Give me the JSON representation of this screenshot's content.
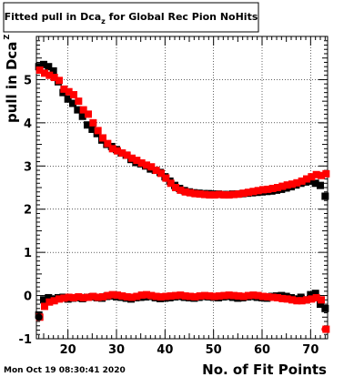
{
  "chart_data": {
    "type": "scatter",
    "title": "Fitted pull in Dca",
    "title_subscript": "z",
    "title_suffix": " for Global Rec Pion NoHits",
    "xlabel": "No. of Fit Points",
    "ylabel": "pull in Dca",
    "ylabel_subscript": "Z",
    "timestamp": "Mon Oct 19 08:30:41 2020",
    "xlim": [
      13.5,
      73.5
    ],
    "ylim": [
      -1.0,
      6.0
    ],
    "x_ticks": [
      20,
      30,
      40,
      50,
      60,
      70
    ],
    "y_ticks": [
      -1,
      0,
      1,
      2,
      3,
      4,
      5
    ],
    "grid": true,
    "legend": "none",
    "series": [
      {
        "color": "#000000",
        "groups": [
          {
            "x": [
              14,
              15,
              16,
              17,
              18,
              19,
              20,
              21,
              22,
              23,
              24,
              25,
              26,
              27,
              28,
              29,
              30,
              31,
              32,
              33,
              34,
              35,
              36,
              37,
              38,
              39,
              40,
              41,
              42,
              43,
              44,
              45,
              46,
              47,
              48,
              49,
              50,
              51,
              52,
              53,
              54,
              55,
              56,
              57,
              58,
              59,
              60,
              61,
              62,
              63,
              64,
              65,
              66,
              67,
              68,
              69,
              70,
              71,
              72,
              73
            ],
            "y": [
              5.3,
              5.35,
              5.3,
              5.2,
              4.95,
              4.7,
              4.55,
              4.45,
              4.3,
              4.15,
              3.95,
              3.85,
              3.75,
              3.6,
              3.5,
              3.45,
              3.38,
              3.3,
              3.25,
              3.15,
              3.08,
              3.05,
              3.0,
              2.93,
              2.9,
              2.85,
              2.75,
              2.65,
              2.55,
              2.48,
              2.43,
              2.4,
              2.38,
              2.37,
              2.36,
              2.36,
              2.35,
              2.35,
              2.34,
              2.34,
              2.35,
              2.35,
              2.36,
              2.37,
              2.38,
              2.39,
              2.4,
              2.41,
              2.42,
              2.44,
              2.46,
              2.49,
              2.52,
              2.56,
              2.6,
              2.63,
              2.65,
              2.6,
              2.55,
              2.3
            ]
          },
          {
            "x": [
              14,
              15,
              16,
              17,
              18,
              19,
              20,
              21,
              22,
              23,
              24,
              25,
              26,
              27,
              28,
              29,
              30,
              31,
              32,
              33,
              34,
              35,
              36,
              37,
              38,
              39,
              40,
              41,
              42,
              43,
              44,
              45,
              46,
              47,
              48,
              49,
              50,
              51,
              52,
              53,
              54,
              55,
              56,
              57,
              58,
              59,
              60,
              61,
              62,
              63,
              64,
              65,
              66,
              67,
              68,
              69,
              70,
              71,
              72,
              73
            ],
            "y": [
              -0.45,
              -0.1,
              -0.05,
              -0.08,
              -0.05,
              -0.04,
              -0.08,
              -0.06,
              -0.05,
              -0.07,
              -0.04,
              -0.03,
              -0.05,
              -0.06,
              -0.02,
              -0.01,
              -0.03,
              -0.04,
              -0.06,
              -0.08,
              -0.05,
              -0.04,
              -0.03,
              -0.02,
              -0.05,
              -0.07,
              -0.06,
              -0.05,
              -0.03,
              -0.02,
              -0.04,
              -0.05,
              -0.06,
              -0.04,
              -0.02,
              -0.03,
              -0.04,
              -0.05,
              -0.03,
              -0.02,
              -0.04,
              -0.06,
              -0.05,
              -0.03,
              -0.02,
              -0.04,
              -0.05,
              -0.06,
              -0.02,
              -0.01,
              0.0,
              -0.02,
              -0.05,
              -0.08,
              -0.04,
              -0.1,
              0.02,
              0.05,
              -0.2,
              -0.3
            ]
          }
        ]
      },
      {
        "color": "#ff0000",
        "groups": [
          {
            "x": [
              14,
              15,
              16,
              17,
              18,
              19,
              20,
              21,
              22,
              23,
              24,
              25,
              26,
              27,
              28,
              29,
              30,
              31,
              32,
              33,
              34,
              35,
              36,
              37,
              38,
              39,
              40,
              41,
              42,
              43,
              44,
              45,
              46,
              47,
              48,
              49,
              50,
              51,
              52,
              53,
              54,
              55,
              56,
              57,
              58,
              59,
              60,
              61,
              62,
              63,
              64,
              65,
              66,
              67,
              68,
              69,
              70,
              71,
              72,
              73
            ],
            "y": [
              5.22,
              5.15,
              5.1,
              5.05,
              4.98,
              4.78,
              4.72,
              4.65,
              4.5,
              4.3,
              4.2,
              4.0,
              3.82,
              3.65,
              3.52,
              3.4,
              3.35,
              3.3,
              3.25,
              3.18,
              3.13,
              3.07,
              3.02,
              2.98,
              2.9,
              2.83,
              2.72,
              2.6,
              2.5,
              2.44,
              2.4,
              2.38,
              2.36,
              2.35,
              2.34,
              2.33,
              2.33,
              2.34,
              2.33,
              2.33,
              2.34,
              2.35,
              2.37,
              2.39,
              2.41,
              2.43,
              2.45,
              2.46,
              2.48,
              2.5,
              2.53,
              2.56,
              2.58,
              2.61,
              2.65,
              2.7,
              2.75,
              2.8,
              2.78,
              2.82
            ]
          },
          {
            "x": [
              14,
              15,
              16,
              17,
              18,
              19,
              20,
              21,
              22,
              23,
              24,
              25,
              26,
              27,
              28,
              29,
              30,
              31,
              32,
              33,
              34,
              35,
              36,
              37,
              38,
              39,
              40,
              41,
              42,
              43,
              44,
              45,
              46,
              47,
              48,
              49,
              50,
              51,
              52,
              53,
              54,
              55,
              56,
              57,
              58,
              59,
              60,
              61,
              62,
              63,
              64,
              65,
              66,
              67,
              68,
              69,
              70,
              71,
              72,
              73
            ],
            "y": [
              -0.5,
              -0.25,
              -0.15,
              -0.12,
              -0.08,
              -0.06,
              -0.04,
              -0.05,
              -0.03,
              -0.05,
              -0.04,
              -0.02,
              -0.04,
              -0.03,
              0.0,
              0.02,
              0.01,
              -0.01,
              -0.03,
              -0.04,
              -0.02,
              0.01,
              0.02,
              0.0,
              -0.02,
              -0.03,
              -0.02,
              -0.01,
              0.0,
              0.01,
              -0.01,
              -0.02,
              -0.03,
              -0.01,
              0.0,
              -0.01,
              -0.02,
              -0.01,
              0.0,
              0.01,
              0.0,
              -0.01,
              -0.02,
              0.0,
              0.01,
              0.0,
              -0.02,
              -0.03,
              -0.04,
              -0.05,
              -0.07,
              -0.08,
              -0.1,
              -0.12,
              -0.12,
              -0.1,
              -0.08,
              -0.05,
              -0.1,
              -0.78
            ]
          }
        ]
      }
    ]
  }
}
